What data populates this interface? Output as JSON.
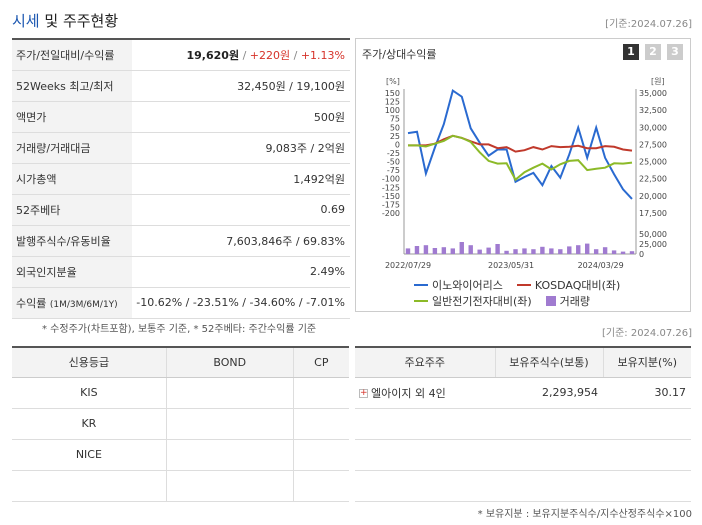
{
  "header": {
    "title_accent": "시세",
    "title_rest": " 및 주주현황",
    "base_date": "[기준:2024.07.26]"
  },
  "summary": [
    {
      "label": "주가/전일대비/수익률",
      "price": "19,620원",
      "change": "+220원",
      "pct": "+1.13%"
    },
    {
      "label": "52Weeks 최고/최저",
      "value": "32,450원 / 19,100원"
    },
    {
      "label": "액면가",
      "value": "500원"
    },
    {
      "label": "거래량/거래대금",
      "value": "9,083주 / 2억원"
    },
    {
      "label": "시가총액",
      "value": "1,492억원"
    },
    {
      "label": "52주베타",
      "value": "0.69"
    },
    {
      "label": "발행주식수/유동비율",
      "value": "7,603,846주 / 69.83%"
    },
    {
      "label": "외국인지분율",
      "value": "2.49%"
    },
    {
      "label": "수익률",
      "label_sub": "(1M/3M/6M/1Y)",
      "value": "-10.62% / -23.51% / -34.60% / -7.01%"
    }
  ],
  "footnote_left": "* 수정주가(차트포함), 보통주 기준, * 52주베타: 주간수익률 기준",
  "footnote_date": "[기준: 2024.07.26]",
  "chart_panel": {
    "title": "주가/상대수익률",
    "tabs": [
      "1",
      "2",
      "3"
    ]
  },
  "chart_data": {
    "type": "line",
    "left_axis_unit": "[%]",
    "right_axis_unit": "[원]",
    "left_ticks": [
      "150",
      "125",
      "100",
      "75",
      "50",
      "25",
      "0",
      "-25",
      "-50",
      "-75",
      "-100",
      "-125",
      "-150",
      "-175",
      "-200"
    ],
    "right_ticks": [
      "35,000",
      "32,500",
      "30,000",
      "27,500",
      "25,000",
      "22,500",
      "20,000",
      "17,500"
    ],
    "volume_ticks": [
      "50,000",
      "25,000",
      "0"
    ],
    "x_labels": [
      "2022/07/29",
      "2023/05/31",
      "2024/03/29"
    ],
    "ylim_left": [
      -200,
      150
    ],
    "ylim_right": [
      17500,
      35000
    ],
    "series": [
      {
        "name": "이노와이어리스",
        "color": "#2a6ad0",
        "axis": "right",
        "values": [
          29300,
          29500,
          23400,
          27200,
          30600,
          35500,
          34600,
          30000,
          27900,
          26000,
          26900,
          26900,
          22200,
          22900,
          23500,
          21700,
          24500,
          22800,
          26200,
          30100,
          25700,
          30100,
          25700,
          23300,
          21100,
          19700
        ]
      },
      {
        "name": "KOSDAQ대비(좌)",
        "color": "#c0392b",
        "axis": "left",
        "values": [
          0,
          0,
          0,
          5,
          18,
          28,
          22,
          12,
          3,
          3,
          -8,
          -5,
          -18,
          -14,
          -5,
          -12,
          -2,
          -5,
          -4,
          -1,
          -8,
          -8,
          -2,
          -4,
          -12,
          -15
        ]
      },
      {
        "name": "일반전기전자대비(좌)",
        "color": "#8cba28",
        "axis": "left",
        "values": [
          0,
          0,
          -3,
          5,
          13,
          28,
          22,
          10,
          -20,
          -45,
          -53,
          -52,
          -100,
          -78,
          -65,
          -53,
          -70,
          -55,
          -45,
          -43,
          -72,
          -68,
          -65,
          -52,
          -53,
          -50
        ]
      }
    ],
    "volume": {
      "name": "거래량",
      "color": "#a07bd0",
      "values": [
        14000,
        20000,
        22000,
        15000,
        17000,
        14000,
        30000,
        22000,
        11000,
        16000,
        25000,
        8000,
        12000,
        14000,
        12000,
        18000,
        14000,
        12000,
        19000,
        22000,
        26000,
        12000,
        17000,
        9000,
        6000,
        7000
      ]
    }
  },
  "credit_table": {
    "headers": [
      "신용등급",
      "BOND",
      "CP"
    ],
    "rows": [
      [
        "KIS",
        "",
        ""
      ],
      [
        "KR",
        "",
        ""
      ],
      [
        "NICE",
        "",
        ""
      ],
      [
        "",
        "",
        ""
      ]
    ]
  },
  "holders_table": {
    "headers": [
      "주요주주",
      "보유주식수(보통)",
      "보유지분(%)"
    ],
    "rows": [
      {
        "name": "엘아이지 외 4인",
        "shares": "2,293,954",
        "pct": "30.17"
      },
      {
        "name": "",
        "shares": "",
        "pct": ""
      },
      {
        "name": "",
        "shares": "",
        "pct": ""
      },
      {
        "name": "",
        "shares": "",
        "pct": ""
      }
    ]
  },
  "footnote_right": "* 보유지분 : 보유지분주식수/지수산정주식수×100"
}
